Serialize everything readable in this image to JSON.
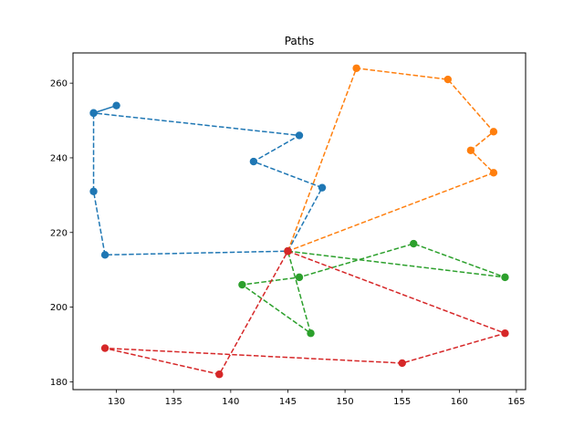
{
  "chart_data": {
    "type": "line",
    "title": "Paths",
    "xlabel": "",
    "ylabel": "",
    "xlim": [
      126.2,
      165.8
    ],
    "ylim": [
      177.9,
      268.1
    ],
    "xticks": [
      130,
      135,
      140,
      145,
      150,
      155,
      160,
      165
    ],
    "yticks": [
      180,
      200,
      220,
      240,
      260
    ],
    "grid": false,
    "line_style": "dashed",
    "marker": "circle",
    "series": [
      {
        "color": "#1f77b4",
        "points": [
          [
            145,
            215
          ],
          [
            148,
            232
          ],
          [
            142,
            239
          ],
          [
            146,
            246
          ],
          [
            128,
            252
          ],
          [
            130,
            254
          ],
          [
            128,
            252
          ],
          [
            128,
            231
          ],
          [
            129,
            214
          ],
          [
            145,
            215
          ]
        ]
      },
      {
        "color": "#ff7f0e",
        "points": [
          [
            145,
            215
          ],
          [
            151,
            264
          ],
          [
            159,
            261
          ],
          [
            163,
            247
          ],
          [
            161,
            242
          ],
          [
            163,
            236
          ],
          [
            145,
            215
          ]
        ]
      },
      {
        "color": "#2ca02c",
        "points": [
          [
            145,
            215
          ],
          [
            164,
            208
          ],
          [
            156,
            217
          ],
          [
            146,
            208
          ],
          [
            141,
            206
          ],
          [
            147,
            193
          ],
          [
            145,
            215
          ]
        ]
      },
      {
        "color": "#d62728",
        "points": [
          [
            145,
            215
          ],
          [
            164,
            193
          ],
          [
            155,
            185
          ],
          [
            129,
            189
          ],
          [
            139,
            182
          ],
          [
            145,
            215
          ]
        ]
      }
    ]
  }
}
